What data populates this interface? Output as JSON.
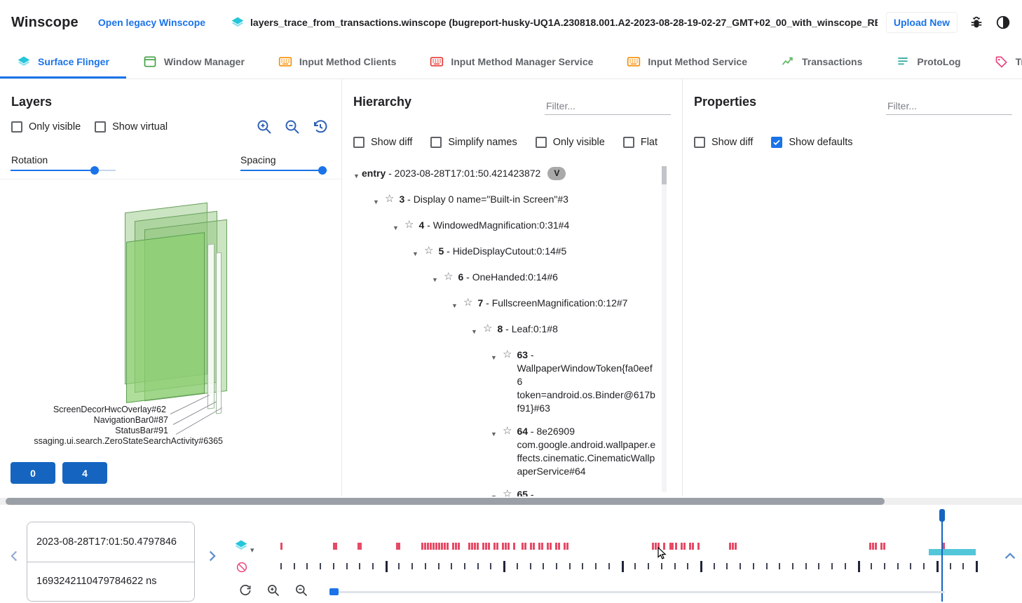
{
  "colors": {
    "accent": "#1a73e8",
    "btn_blue": "#1565c0",
    "sf_tick": "#e64a66",
    "tx_tick": "#20243a",
    "selection_cyan": "#54c6d9",
    "cursor_blue": "#1565c0"
  },
  "header": {
    "app_title": "Winscope",
    "legacy_link": "Open legacy Winscope",
    "file_name": "layers_trace_from_transactions.winscope (bugreport-husky-UQ1A.230818.001.A2-2023-08-28-19-02-27_GMT+02_00_with_winscope_REDACTED.zip)",
    "upload_button": "Upload New"
  },
  "tabs": [
    {
      "label": "Surface Flinger",
      "icon": "layers-icon",
      "icon_color": "#26c6da",
      "active": true
    },
    {
      "label": "Window Manager",
      "icon": "window-icon",
      "icon_color": "#43a047",
      "active": false
    },
    {
      "label": "Input Method Clients",
      "icon": "keyboard-icon",
      "icon_color": "#fb8c00",
      "active": false
    },
    {
      "label": "Input Method Manager Service",
      "icon": "keyboard-icon",
      "icon_color": "#e53935",
      "active": false
    },
    {
      "label": "Input Method Service",
      "icon": "keyboard-icon",
      "icon_color": "#fb8c00",
      "active": false
    },
    {
      "label": "Transactions",
      "icon": "trend-icon",
      "icon_color": "#66bb6a",
      "active": false
    },
    {
      "label": "ProtoLog",
      "icon": "list-icon",
      "icon_color": "#26a69a",
      "active": false
    },
    {
      "label": "Transitions",
      "icon": "tag-icon",
      "icon_color": "#ec407a",
      "active": false
    }
  ],
  "layers_panel": {
    "title": "Layers",
    "checkboxes": [
      {
        "label": "Only visible",
        "checked": false
      },
      {
        "label": "Show virtual",
        "checked": false
      }
    ],
    "rotation_label": "Rotation",
    "spacing_label": "Spacing",
    "rotation_value_pct": 80,
    "spacing_value_pct": 94,
    "layer_labels": [
      "ScreenDecorHwcOverlay#62",
      "NavigationBar0#87",
      "StatusBar#91",
      "ssaging.ui.search.ZeroStateSearchActivity#6365"
    ],
    "display_buttons": [
      "0",
      "4"
    ]
  },
  "hierarchy_panel": {
    "title": "Hierarchy",
    "filter_placeholder": "Filter...",
    "checkboxes": [
      {
        "label": "Show diff",
        "checked": false
      },
      {
        "label": "Simplify names",
        "checked": false
      },
      {
        "label": "Only visible",
        "checked": false
      },
      {
        "label": "Flat",
        "checked": false
      }
    ],
    "tree": [
      {
        "id": "entry",
        "text": " - 2023-08-28T17:01:50.421423872",
        "level": 0,
        "star": false,
        "chip": "V"
      },
      {
        "id": "3",
        "text": " - Display 0 name=\"Built-in Screen\"#3",
        "level": 1,
        "star": true,
        "chip": null
      },
      {
        "id": "4",
        "text": " - WindowedMagnification:0:31#4",
        "level": 2,
        "star": true,
        "chip": null
      },
      {
        "id": "5",
        "text": " - HideDisplayCutout:0:14#5",
        "level": 3,
        "star": true,
        "chip": null
      },
      {
        "id": "6",
        "text": " - OneHanded:0:14#6",
        "level": 4,
        "star": true,
        "chip": null
      },
      {
        "id": "7",
        "text": " - FullscreenMagnification:0:12#7",
        "level": 5,
        "star": true,
        "chip": null
      },
      {
        "id": "8",
        "text": " - Leaf:0:1#8",
        "level": 6,
        "star": true,
        "chip": null
      },
      {
        "id": "63",
        "text": " - WallpaperWindowToken{fa0eef6 token=android.os.Binder@617bf91}#63",
        "level": 7,
        "star": true,
        "chip": null
      },
      {
        "id": "64",
        "text": " - 8e26909 com.google.android.wallpaper.effects.cinematic.CinematicWallpaperService#64",
        "level": 7,
        "star": true,
        "chip": null
      },
      {
        "id": "65",
        "text": " - com.google.android.wallpaper.effects.cinematic.CinematicWallpaperSer",
        "level": 7,
        "star": true,
        "chip": null
      }
    ]
  },
  "properties_panel": {
    "title": "Properties",
    "filter_placeholder": "Filter...",
    "checkboxes": [
      {
        "label": "Show diff",
        "checked": false
      },
      {
        "label": "Show defaults",
        "checked": true
      }
    ]
  },
  "timeline": {
    "timestamp_human": "2023-08-28T17:01:50.4797846",
    "timestamp_ns": "1693242110479784622 ns",
    "sf_ticks_pct": [
      0,
      7.6,
      7.9,
      11.1,
      11.4,
      16.6,
      16.9,
      20.3,
      20.7,
      21.1,
      21.5,
      21.9,
      22.3,
      22.7,
      23.1,
      23.5,
      23.9,
      24.7,
      25.1,
      25.5,
      27.0,
      27.4,
      27.8,
      28.2,
      29.0,
      29.4,
      29.8,
      30.6,
      31.0,
      31.9,
      32.3,
      32.7,
      33.5,
      34.7,
      35.1,
      35.9,
      36.3,
      37.1,
      37.5,
      38.3,
      38.7,
      39.5,
      39.9,
      40.7,
      41.1,
      53.4,
      53.8,
      54.2,
      55.0,
      55.9,
      56.3,
      56.8,
      57.6,
      58.0,
      58.8,
      59.2,
      60.0,
      64.5,
      64.9,
      65.3,
      84.7,
      85.1,
      85.5,
      86.3,
      86.7,
      95.3
    ],
    "tx_ticks": {
      "count": 54,
      "tall_indices": [
        8,
        17,
        26,
        32,
        44,
        50,
        53
      ]
    },
    "cursor_pct": 95.2,
    "selection": {
      "start_pct": 93.2,
      "end_pct": 100
    }
  }
}
